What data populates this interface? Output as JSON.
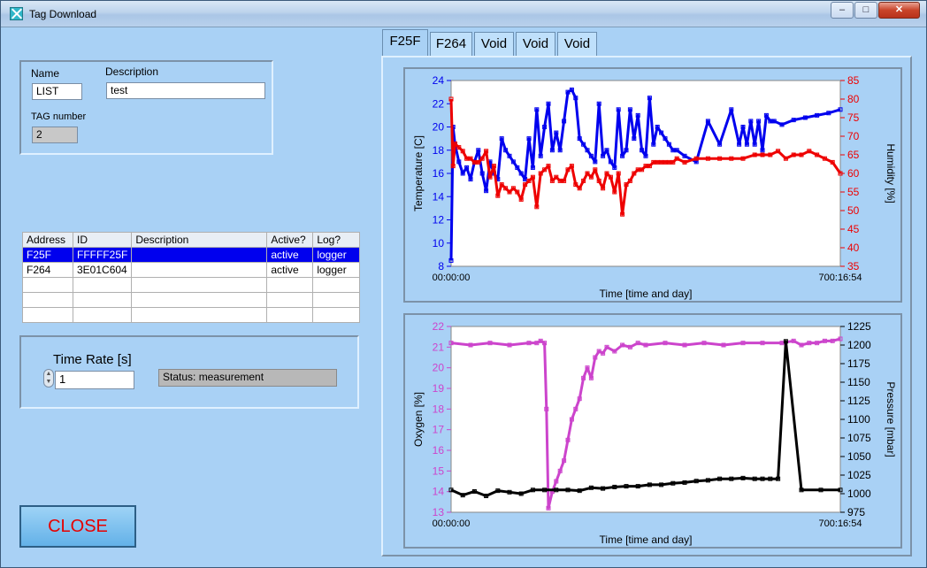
{
  "window": {
    "title": "Tag Download",
    "min_glyph": "–",
    "max_glyph": "□",
    "close_glyph": "✕",
    "app_icon": "tag-download-icon"
  },
  "tag": {
    "name_label": "Name",
    "name_value": "LIST",
    "description_label": "Description",
    "description_value": "test",
    "tag_number_label": "TAG number",
    "tag_number_value": "2"
  },
  "table": {
    "columns": [
      "Address",
      "ID",
      "Description",
      "Active?",
      "Log?"
    ],
    "rows": [
      {
        "address": "F25F",
        "id": "FFFFF25F",
        "description": "",
        "active": "active",
        "log": "logger",
        "selected": true
      },
      {
        "address": "F264",
        "id": "3E01C604",
        "description": "",
        "active": "active",
        "log": "logger",
        "selected": false
      },
      {
        "address": "",
        "id": "",
        "description": "",
        "active": "",
        "log": "",
        "selected": false
      },
      {
        "address": "",
        "id": "",
        "description": "",
        "active": "",
        "log": "",
        "selected": false
      },
      {
        "address": "",
        "id": "",
        "description": "",
        "active": "",
        "log": "",
        "selected": false
      }
    ]
  },
  "timerate": {
    "label": "Time Rate [s]",
    "value": "1",
    "status": "Status: measurement"
  },
  "close_label": "CLOSE",
  "tabs": [
    {
      "label": "F25F",
      "active": true
    },
    {
      "label": "F264",
      "active": false
    },
    {
      "label": "Void",
      "active": false
    },
    {
      "label": "Void",
      "active": false
    },
    {
      "label": "Void",
      "active": false
    }
  ],
  "chart_data": [
    {
      "type": "line",
      "xlabel": "Time [time and day]",
      "x_tick_start": "00:00:00",
      "x_tick_end": "700:16:54",
      "y_left": {
        "label": "Temperature [C]",
        "ticks": [
          8,
          10,
          12,
          14,
          16,
          18,
          20,
          22,
          24
        ],
        "range": [
          8,
          24
        ],
        "color": "#0000ee"
      },
      "y_right": {
        "label": "Humidity [%]",
        "ticks": [
          35,
          40,
          45,
          50,
          55,
          60,
          65,
          70,
          75,
          80,
          85
        ],
        "range": [
          35,
          85
        ],
        "color": "#ee0000"
      },
      "series": [
        {
          "axis": "left",
          "color": "#0000ee",
          "x": [
            0,
            0.5,
            1,
            2,
            3,
            4,
            5,
            6,
            7,
            8,
            9,
            10,
            11,
            12,
            13,
            14,
            15,
            16,
            17,
            18,
            19,
            20,
            21,
            22,
            23,
            24,
            25,
            26,
            27,
            28,
            29,
            30,
            31,
            32,
            33,
            34,
            35,
            36,
            37,
            38,
            39,
            40,
            41,
            42,
            43,
            44,
            45,
            46,
            47,
            48,
            49,
            50,
            51,
            52,
            53,
            54,
            55,
            56,
            57,
            58,
            60,
            63,
            66,
            69,
            72,
            74,
            75,
            76,
            77,
            78,
            79,
            80,
            81,
            82,
            83,
            85,
            88,
            91,
            94,
            97,
            100
          ],
          "y": [
            8.5,
            20,
            18.5,
            17,
            16,
            16.5,
            15.5,
            17,
            18,
            16,
            14.5,
            17,
            16,
            15.5,
            19,
            18,
            17.5,
            17,
            16.5,
            16,
            15.5,
            19,
            16.5,
            21.5,
            17.5,
            20,
            22,
            18,
            19.5,
            18,
            20.5,
            23,
            23.2,
            22.5,
            19,
            18.5,
            18,
            17.5,
            17,
            22,
            17.5,
            18,
            17,
            16.5,
            21.5,
            17.5,
            18,
            21.5,
            19,
            21,
            18,
            17.5,
            22.5,
            18.5,
            20,
            19.5,
            19,
            18.5,
            18,
            18,
            17.5,
            17,
            20.5,
            18.5,
            21.5,
            18.5,
            20,
            18.5,
            20.5,
            18.5,
            20.5,
            18,
            21,
            20.5,
            20.5,
            20.2,
            20.6,
            20.8,
            21,
            21.2,
            21.5
          ]
        },
        {
          "axis": "right",
          "color": "#ee0000",
          "x": [
            0,
            0.5,
            1,
            2,
            3,
            4,
            5,
            6,
            7,
            8,
            9,
            10,
            11,
            12,
            13,
            14,
            15,
            16,
            17,
            18,
            19,
            20,
            21,
            22,
            23,
            24,
            25,
            26,
            27,
            28,
            29,
            30,
            31,
            32,
            33,
            34,
            35,
            36,
            37,
            38,
            39,
            40,
            41,
            42,
            43,
            44,
            45,
            46,
            47,
            48,
            49,
            50,
            51,
            52,
            53,
            54,
            55,
            56,
            57,
            58,
            60,
            63,
            66,
            69,
            72,
            75,
            78,
            80,
            82,
            84,
            86,
            88,
            90,
            92,
            94,
            96,
            98,
            100
          ],
          "y": [
            80,
            62,
            68,
            67,
            66,
            64,
            64,
            63,
            63,
            64,
            66,
            59,
            62,
            54,
            57,
            56,
            55,
            56,
            55,
            53,
            57,
            58,
            59,
            51,
            60,
            61,
            62,
            58,
            59,
            58,
            58,
            61,
            62,
            57,
            56,
            58,
            60,
            59,
            61,
            58,
            56,
            60,
            59,
            55,
            60,
            49,
            57,
            58,
            60,
            61,
            61,
            62,
            62,
            63,
            63,
            63,
            63,
            63,
            63,
            64,
            63,
            64,
            64,
            64,
            64,
            64,
            65,
            65,
            65,
            66,
            64,
            65,
            65,
            66,
            65,
            64,
            63,
            60
          ]
        }
      ]
    },
    {
      "type": "line",
      "xlabel": "Time [time and day]",
      "x_tick_start": "00:00:00",
      "x_tick_end": "700:16:54",
      "y_left": {
        "label": "Oxygen [%]",
        "ticks": [
          13,
          14,
          15,
          16,
          17,
          18,
          19,
          20,
          21,
          22
        ],
        "range": [
          13,
          22
        ],
        "color": "#cc44cc"
      },
      "y_right": {
        "label": "Pressure [mbar]",
        "ticks": [
          975,
          1000,
          1025,
          1050,
          1075,
          1100,
          1125,
          1150,
          1175,
          1200,
          1225
        ],
        "range": [
          975,
          1225
        ],
        "color": "#000000"
      },
      "series": [
        {
          "axis": "left",
          "color": "#cc44cc",
          "x": [
            0,
            5,
            10,
            15,
            20,
            22,
            23,
            24,
            24.5,
            25,
            26,
            27,
            28,
            29,
            30,
            31,
            32,
            33,
            34,
            35,
            36,
            37,
            38,
            39,
            40,
            42,
            44,
            46,
            48,
            50,
            55,
            60,
            65,
            70,
            75,
            80,
            85,
            88,
            90,
            92,
            94,
            96,
            98,
            100
          ],
          "y": [
            21.2,
            21.1,
            21.2,
            21.1,
            21.2,
            21.2,
            21.3,
            21.2,
            18,
            13.2,
            14,
            14.5,
            15,
            15.5,
            16.5,
            17.5,
            18,
            18.5,
            19.5,
            20,
            19.5,
            20.5,
            20.8,
            20.7,
            21,
            20.8,
            21.1,
            21,
            21.2,
            21.1,
            21.2,
            21.1,
            21.2,
            21.1,
            21.2,
            21.2,
            21.2,
            21.3,
            21.1,
            21.2,
            21.2,
            21.3,
            21.3,
            21.4
          ]
        },
        {
          "axis": "right",
          "color": "#000000",
          "x": [
            0,
            3,
            6,
            9,
            12,
            15,
            18,
            21,
            24,
            27,
            30,
            33,
            36,
            39,
            42,
            45,
            48,
            51,
            54,
            57,
            60,
            63,
            66,
            69,
            72,
            75,
            78,
            80,
            82,
            84,
            86,
            90,
            95,
            100
          ],
          "y": [
            1005,
            998,
            1003,
            997,
            1004,
            1002,
            1000,
            1005,
            1005,
            1005,
            1005,
            1004,
            1008,
            1007,
            1009,
            1010,
            1010,
            1012,
            1012,
            1014,
            1015,
            1017,
            1018,
            1020,
            1020,
            1021,
            1020,
            1020,
            1020,
            1020,
            1205,
            1005,
            1005,
            1005
          ]
        }
      ]
    }
  ]
}
